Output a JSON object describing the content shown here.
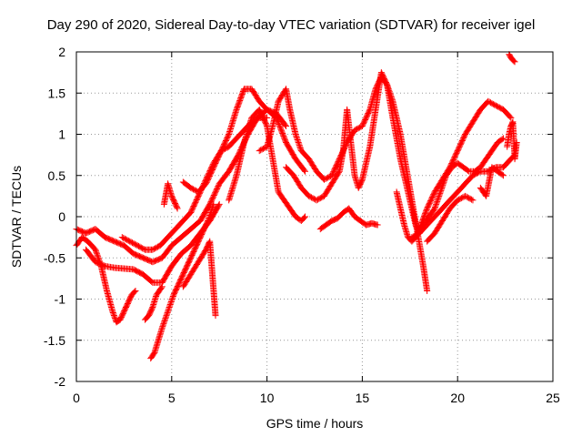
{
  "chart_data": {
    "type": "scatter",
    "title": "Day 290 of 2020, Sidereal Day-to-day VTEC variation (SDTVAR) for receiver igel",
    "xlabel": "GPS time / hours",
    "ylabel": "SDTVAR / TECUs",
    "xlim": [
      0,
      25
    ],
    "ylim": [
      -2,
      2
    ],
    "xticks": [
      0,
      5,
      10,
      15,
      20,
      25
    ],
    "yticks": [
      -2,
      -1.5,
      -1,
      -0.5,
      0,
      0.5,
      1,
      1.5,
      2
    ],
    "xtick_labels": [
      "0",
      "5",
      "10",
      "15",
      "20",
      "25"
    ],
    "ytick_labels": [
      "-2",
      "-1.5",
      "-1",
      "-0.5",
      "0",
      "0.5",
      "1",
      "1.5",
      "2"
    ],
    "grid": true,
    "marker": "+",
    "color": "#ff0000",
    "series": [
      {
        "x": [
          0,
          0.3,
          0.6,
          1.0,
          1.3,
          1.6,
          1.9,
          2.1,
          2.3,
          2.6,
          2.9,
          3.1
        ],
        "y": [
          -0.35,
          -0.25,
          -0.3,
          -0.4,
          -0.6,
          -0.9,
          -1.15,
          -1.28,
          -1.25,
          -1.1,
          -0.95,
          -0.9
        ]
      },
      {
        "x": [
          0,
          0.5,
          1.0,
          1.5,
          2.0,
          2.5,
          3.0,
          3.5,
          4.0,
          4.5,
          5.0,
          5.5,
          6.0,
          6.5,
          7.0,
          7.5,
          8.0,
          8.5,
          9.0,
          9.5,
          10.0,
          10.5,
          11.0
        ],
        "y": [
          -0.15,
          -0.2,
          -0.15,
          -0.25,
          -0.3,
          -0.35,
          -0.45,
          -0.5,
          -0.55,
          -0.5,
          -0.35,
          -0.25,
          -0.15,
          -0.05,
          0.15,
          0.4,
          0.55,
          0.75,
          1.0,
          1.2,
          1.3,
          1.25,
          1.1
        ]
      },
      {
        "x": [
          0.5,
          1.0,
          1.5,
          2.0,
          2.5,
          3.0,
          3.5,
          4.0,
          4.5,
          5.0,
          5.5,
          6.0,
          6.5,
          7.0,
          7.5
        ],
        "y": [
          -0.4,
          -0.55,
          -0.6,
          -0.62,
          -0.63,
          -0.64,
          -0.7,
          -0.8,
          -0.8,
          -0.6,
          -0.45,
          -0.35,
          -0.2,
          -0.05,
          0.15
        ]
      },
      {
        "x": [
          2.4,
          2.8,
          3.2,
          3.6,
          4.0,
          4.4,
          4.8,
          5.2,
          5.6,
          6.0,
          6.4,
          6.8,
          7.2,
          7.6,
          8.0,
          8.4,
          8.8,
          9.2,
          9.6,
          10.0
        ],
        "y": [
          -0.25,
          -0.3,
          -0.35,
          -0.4,
          -0.4,
          -0.35,
          -0.25,
          -0.15,
          -0.05,
          0.05,
          0.25,
          0.45,
          0.65,
          0.8,
          0.85,
          0.95,
          1.05,
          1.15,
          1.2,
          1.2
        ]
      },
      {
        "x": [
          3.6,
          3.8,
          4.0,
          4.2,
          4.5
        ],
        "y": [
          -1.25,
          -1.2,
          -1.1,
          -0.95,
          -0.85
        ]
      },
      {
        "x": [
          3.9,
          4.1,
          4.3,
          4.5,
          4.8,
          5.1,
          5.4,
          5.7,
          6.0,
          6.3,
          6.6,
          6.9,
          7.2
        ],
        "y": [
          -1.72,
          -1.65,
          -1.5,
          -1.35,
          -1.15,
          -0.95,
          -0.8,
          -0.65,
          -0.5,
          -0.35,
          -0.2,
          -0.05,
          0.15
        ]
      },
      {
        "x": [
          5.6,
          6.0,
          6.4,
          6.8,
          7.0,
          7.2,
          7.3
        ],
        "y": [
          -0.85,
          -0.7,
          -0.55,
          -0.4,
          -0.3,
          -0.9,
          -1.2
        ]
      },
      {
        "x": [
          4.6,
          4.8,
          5.0,
          5.3
        ],
        "y": [
          0.15,
          0.4,
          0.25,
          0.1
        ]
      },
      {
        "x": [
          5.6,
          6.0,
          6.4,
          6.8,
          7.2,
          7.6,
          8.0,
          8.4,
          8.8,
          9.2,
          9.6,
          10.0,
          10.5,
          11.0,
          11.5,
          12.0
        ],
        "y": [
          0.42,
          0.35,
          0.3,
          0.4,
          0.6,
          0.8,
          1.0,
          1.3,
          1.55,
          1.55,
          1.4,
          1.3,
          1.2,
          0.9,
          0.7,
          0.55
        ]
      },
      {
        "x": [
          8.0,
          8.4,
          8.8,
          9.2,
          9.6,
          10.0,
          10.3,
          10.6,
          10.9,
          11.2,
          11.5,
          11.8,
          12.0
        ],
        "y": [
          0.2,
          0.5,
          0.9,
          1.2,
          1.3,
          1.1,
          0.7,
          0.3,
          0.2,
          0.1,
          0.0,
          -0.05,
          0.0
        ]
      },
      {
        "x": [
          9.6,
          10.0,
          10.3,
          10.6,
          11.0,
          11.2,
          11.5,
          11.8,
          12.2,
          12.6,
          13.0,
          13.4,
          13.8,
          14.2,
          14.6,
          15.0,
          15.4,
          15.7,
          16.0,
          16.3,
          16.6,
          17.0,
          17.3,
          17.6,
          17.9,
          18.2,
          18.4
        ],
        "y": [
          0.8,
          0.85,
          1.1,
          1.4,
          1.55,
          1.3,
          1.0,
          0.8,
          0.7,
          0.55,
          0.45,
          0.5,
          0.7,
          0.9,
          1.05,
          1.1,
          1.3,
          1.55,
          1.7,
          1.6,
          1.4,
          1.0,
          0.6,
          0.2,
          -0.2,
          -0.6,
          -0.9
        ]
      },
      {
        "x": [
          11.0,
          11.4,
          11.8,
          12.2,
          12.6,
          13.0,
          13.4,
          13.8,
          14.0,
          14.2,
          14.4,
          14.6,
          14.8,
          15.0,
          15.4,
          15.7,
          16.0,
          16.3,
          16.6,
          17.0,
          17.4,
          17.8,
          18.0
        ],
        "y": [
          0.6,
          0.5,
          0.35,
          0.25,
          0.2,
          0.25,
          0.4,
          0.55,
          0.8,
          1.3,
          0.9,
          0.5,
          0.35,
          0.45,
          0.85,
          1.3,
          1.75,
          1.6,
          1.2,
          0.7,
          0.3,
          -0.1,
          -0.2
        ]
      },
      {
        "x": [
          12.8,
          13.1,
          13.4,
          13.7,
          14.0,
          14.3,
          14.6,
          14.9,
          15.2,
          15.5,
          15.8
        ],
        "y": [
          -0.15,
          -0.1,
          -0.05,
          -0.02,
          0.05,
          0.1,
          0.0,
          -0.05,
          -0.1,
          -0.08,
          -0.1
        ]
      },
      {
        "x": [
          16.8,
          17.0,
          17.2,
          17.4,
          17.6,
          17.8,
          18.0,
          18.2,
          18.5,
          18.8,
          19.1,
          19.4,
          19.7,
          20.0,
          20.3,
          20.6,
          20.9,
          21.2,
          21.5,
          21.8,
          22.1,
          22.4
        ],
        "y": [
          0.3,
          0.1,
          -0.1,
          -0.25,
          -0.3,
          -0.25,
          -0.15,
          -0.1,
          0.0,
          0.1,
          0.3,
          0.5,
          0.6,
          0.65,
          0.6,
          0.55,
          0.55,
          0.6,
          0.7,
          0.8,
          0.9,
          0.95
        ]
      },
      {
        "x": [
          18.0,
          18.4,
          18.8,
          19.2,
          19.6,
          20.0,
          20.4,
          20.8,
          21.2,
          21.6,
          22.0,
          22.4,
          22.8
        ],
        "y": [
          -0.15,
          0.1,
          0.3,
          0.45,
          0.6,
          0.8,
          1.0,
          1.15,
          1.3,
          1.4,
          1.35,
          1.3,
          1.2
        ]
      },
      {
        "x": [
          17.6,
          18.0,
          18.4,
          18.8,
          19.2,
          19.6,
          20.0,
          20.4,
          20.8,
          21.2,
          21.6,
          22.0,
          22.4,
          22.8,
          23.0
        ],
        "y": [
          -0.25,
          -0.2,
          -0.1,
          0.0,
          0.1,
          0.2,
          0.3,
          0.4,
          0.5,
          0.55,
          0.55,
          0.6,
          0.6,
          0.7,
          0.75
        ]
      },
      {
        "x": [
          18.4,
          18.8,
          19.2,
          19.6,
          20.0,
          20.4,
          20.8
        ],
        "y": [
          -0.3,
          -0.2,
          -0.05,
          0.1,
          0.2,
          0.25,
          0.2
        ]
      },
      {
        "x": [
          21.2,
          21.5,
          21.8,
          22.1,
          22.4
        ],
        "y": [
          0.35,
          0.25,
          0.6,
          0.55,
          0.5
        ]
      },
      {
        "x": [
          22.7,
          22.8,
          22.9,
          23.0
        ],
        "y": [
          1.97,
          1.93,
          1.9,
          1.88
        ]
      },
      {
        "x": [
          22.6,
          22.7,
          22.8,
          22.9,
          23.0,
          23.1
        ],
        "y": [
          0.85,
          1.0,
          1.1,
          1.15,
          0.7,
          0.9
        ]
      }
    ]
  }
}
